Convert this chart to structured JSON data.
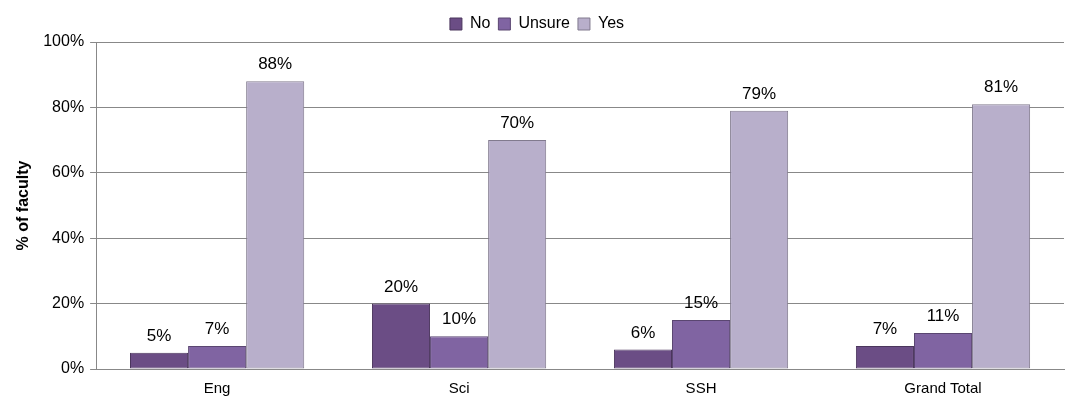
{
  "chart_data": {
    "type": "bar",
    "ylabel": "% of faculty",
    "categories": [
      "Eng",
      "Sci",
      "SSH",
      "Grand Total"
    ],
    "series": [
      {
        "name": "No",
        "color": "#6b4d85",
        "values": [
          5,
          20,
          6,
          7
        ],
        "value_labels": [
          "5%",
          "20%",
          "6%",
          "7%"
        ]
      },
      {
        "name": "Unsure",
        "color": "#8064a2",
        "values": [
          7,
          10,
          15,
          11
        ],
        "value_labels": [
          "7%",
          "10%",
          "15%",
          "11%"
        ]
      },
      {
        "name": "Yes",
        "color": "#b8afcb",
        "values": [
          88,
          70,
          79,
          81
        ],
        "value_labels": [
          "88%",
          "70%",
          "79%",
          "81%"
        ]
      }
    ],
    "ylim": [
      0,
      100
    ],
    "yticks": [
      {
        "value": 0,
        "label": "0%"
      },
      {
        "value": 20,
        "label": "20%"
      },
      {
        "value": 40,
        "label": "40%"
      },
      {
        "value": 60,
        "label": "60%"
      },
      {
        "value": 80,
        "label": "80%"
      },
      {
        "value": 100,
        "label": "100%"
      }
    ],
    "grid": "y",
    "legend": "top"
  }
}
